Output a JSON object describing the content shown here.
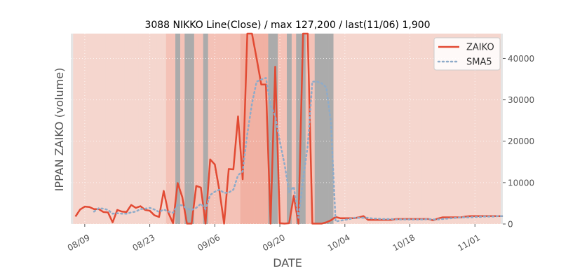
{
  "chart_data": {
    "type": "line",
    "title": "3088 NIKKO Line(Close) / max 127,200 / last(11/06) 1,900",
    "xlabel": "DATE",
    "ylabel": "IPPAN ZAIKO (volume)",
    "x_start": "2021-08-07",
    "x_end": "2021-11-06",
    "xlim": [
      "2021-08-06",
      "2021-11-07"
    ],
    "ylim": [
      0,
      46000
    ],
    "yticks": [
      0,
      10000,
      20000,
      30000,
      40000
    ],
    "ytick_labels": [
      "0",
      "10000",
      "20000",
      "30000",
      "40000"
    ],
    "xticks": [
      "2021-08-09",
      "2021-08-23",
      "2021-09-06",
      "2021-09-20",
      "2021-10-04",
      "2021-10-18",
      "2021-11-01"
    ],
    "xtick_labels": [
      "08/09",
      "08/23",
      "09/06",
      "09/20",
      "10/04",
      "10/18",
      "11/01"
    ],
    "y_axis_side": "right",
    "grid": true,
    "legend_position": "top-right",
    "series": [
      {
        "name": "ZAIKO",
        "color": "#e24a33",
        "style": "solid",
        "values": [
          1800,
          3500,
          4200,
          4100,
          3600,
          3600,
          2900,
          2800,
          400,
          3400,
          3000,
          2900,
          4600,
          3900,
          4300,
          3400,
          3200,
          2100,
          1700,
          8000,
          2700,
          200,
          9900,
          6500,
          100,
          100,
          9200,
          8800,
          100,
          15600,
          14400,
          8000,
          100,
          13300,
          13200,
          26000,
          10800,
          46000,
          46000,
          40000,
          33700,
          33700,
          100,
          38000,
          200,
          100,
          200,
          6800,
          100,
          46000,
          46000,
          100,
          100,
          100,
          400,
          900,
          1700,
          1400,
          1400,
          1400,
          1400,
          1600,
          1900,
          1000,
          1000,
          1000,
          1000,
          1000,
          1000,
          1200,
          1200,
          1200,
          1200,
          1200,
          1200,
          1200,
          1200,
          900,
          1300,
          1600,
          1600,
          1600,
          1600,
          1600,
          1800,
          1900,
          1900,
          1900,
          1900,
          1900,
          1900,
          1900,
          1900
        ]
      },
      {
        "name": "SMA5",
        "color": "#8eabc9",
        "style": "dotted",
        "values": [
          null,
          null,
          null,
          null,
          3000,
          3800,
          3700,
          3400,
          2500,
          2600,
          2500,
          2500,
          2800,
          3000,
          3600,
          3700,
          3900,
          3500,
          2900,
          3500,
          3000,
          2700,
          4600,
          4500,
          3700,
          3400,
          3900,
          4900,
          3600,
          7000,
          7800,
          8300,
          7500,
          7600,
          8300,
          11800,
          12700,
          21800,
          29100,
          34400,
          34900,
          35300,
          28700,
          26100,
          19900,
          14500,
          7700,
          9000,
          1500,
          10700,
          18900,
          34400,
          34400,
          34000,
          33000,
          24600,
          600,
          800,
          1000,
          1200,
          1500,
          1500,
          1500,
          1500,
          1300,
          1300,
          1200,
          1200,
          1200,
          1100,
          1100,
          1100,
          1100,
          1100,
          1100,
          1100,
          1200,
          1100,
          1100,
          1200,
          1300,
          1400,
          1500,
          1600,
          1600,
          1600,
          1700,
          1700,
          1800,
          1800,
          1800,
          1900,
          1900
        ]
      }
    ],
    "bands": {
      "light": [
        "2021-08-07",
        "2021-08-08",
        "2021-08-09",
        "2021-08-10",
        "2021-08-11",
        "2021-08-12",
        "2021-08-13",
        "2021-08-14",
        "2021-08-15",
        "2021-08-16",
        "2021-08-17",
        "2021-08-18",
        "2021-08-19",
        "2021-08-20",
        "2021-08-21",
        "2021-08-22",
        "2021-08-23",
        "2021-08-24",
        "2021-08-25",
        "2021-08-26",
        "2021-10-02",
        "2021-10-03",
        "2021-10-04",
        "2021-10-05",
        "2021-10-06",
        "2021-10-07",
        "2021-10-08",
        "2021-10-09",
        "2021-10-10",
        "2021-10-11",
        "2021-10-12",
        "2021-10-13",
        "2021-10-14",
        "2021-10-15",
        "2021-10-16",
        "2021-10-17",
        "2021-10-18",
        "2021-10-19",
        "2021-10-20",
        "2021-10-21",
        "2021-10-22",
        "2021-10-23",
        "2021-10-24",
        "2021-10-25",
        "2021-10-26",
        "2021-10-27",
        "2021-10-28",
        "2021-10-29",
        "2021-10-30",
        "2021-10-31",
        "2021-11-01",
        "2021-11-02",
        "2021-11-03",
        "2021-11-04",
        "2021-11-05",
        "2021-11-06"
      ],
      "medium": [
        "2021-08-27",
        "2021-08-28",
        "2021-08-30",
        "2021-09-02",
        "2021-09-03",
        "2021-09-05",
        "2021-09-06",
        "2021-09-07",
        "2021-09-08",
        "2021-09-09",
        "2021-09-10",
        "2021-09-11",
        "2021-09-20",
        "2021-09-21",
        "2021-09-23",
        "2021-09-26",
        "2021-09-27"
      ],
      "strong": [
        "2021-09-12",
        "2021-09-13",
        "2021-09-14",
        "2021-09-15",
        "2021-09-16",
        "2021-09-17"
      ],
      "gray": [
        "2021-08-29",
        "2021-08-31",
        "2021-09-01",
        "2021-09-04",
        "2021-09-18",
        "2021-09-19",
        "2021-09-22",
        "2021-09-24",
        "2021-09-25",
        "2021-09-28",
        "2021-09-29",
        "2021-09-30",
        "2021-10-01"
      ]
    }
  }
}
